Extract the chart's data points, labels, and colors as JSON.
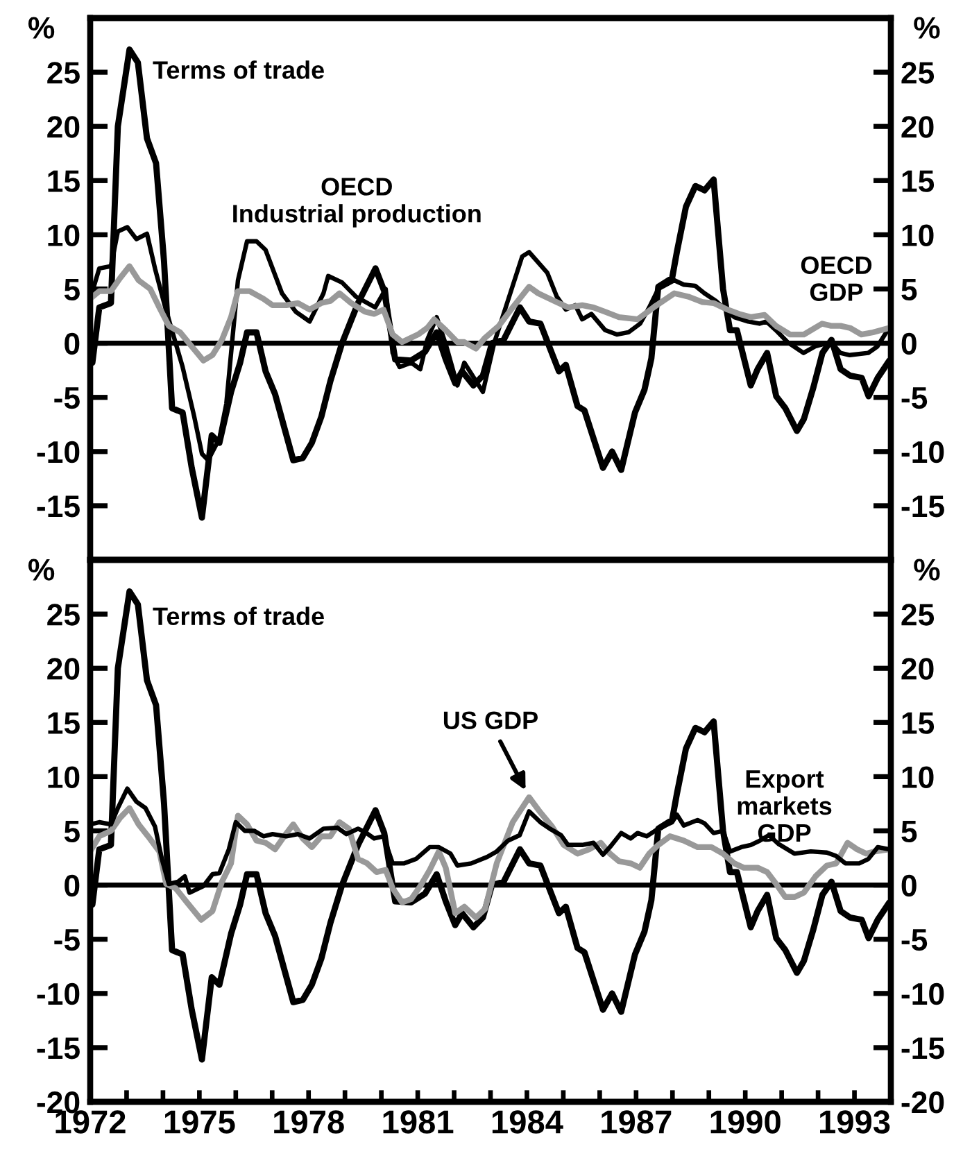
{
  "chart_data": [
    {
      "type": "line",
      "ylabel": "%",
      "y2label": "%",
      "xlim": [
        1972,
        1994
      ],
      "ylim": [
        -20,
        30
      ],
      "yticks": [
        -15,
        -10,
        -5,
        0,
        5,
        10,
        15,
        20,
        25
      ],
      "y2lim": [
        -20,
        30
      ],
      "y2ticks": [
        -15,
        -10,
        -5,
        0,
        5,
        10,
        15,
        20,
        25
      ],
      "tick_labels": "y",
      "ref_lines": [
        {
          "axis": "y",
          "value": 0,
          "color": "#000000"
        }
      ],
      "series": [
        {
          "name": "Terms of trade",
          "color": "#000000",
          "x": [
            1972.06,
            1972.25,
            1972.57,
            1972.76,
            1973.08,
            1973.31,
            1973.56,
            1973.81,
            1974.03,
            1974.25,
            1974.54,
            1974.79,
            1975.07,
            1975.34,
            1975.55,
            1975.87,
            1976.12,
            1976.31,
            1976.57,
            1976.82,
            1977.08,
            1977.58,
            1977.84,
            1978.09,
            1978.35,
            1978.6,
            1978.92,
            1979.36,
            1979.84,
            1980.08,
            1980.38,
            1980.82,
            1981.2,
            1981.52,
            1981.77,
            1982.03,
            1982.22,
            1982.53,
            1982.79,
            1983.04,
            1983.36,
            1983.81,
            1984.06,
            1984.37,
            1984.88,
            1985.07,
            1985.39,
            1985.58,
            1986.09,
            1986.34,
            1986.59,
            1986.97,
            1987.23,
            1987.42,
            1987.61,
            1987.99,
            1988.12,
            1988.37,
            1988.63,
            1988.88,
            1989.13,
            1989.39,
            1989.58,
            1989.77,
            1990.15,
            1990.34,
            1990.6,
            1990.85,
            1991.1,
            1991.42,
            1991.61,
            1991.87,
            1992.12,
            1992.37,
            1992.62,
            1992.88,
            1993.2,
            1993.39,
            1993.64,
            1993.96
          ],
          "values": [
            -1.8,
            3.3,
            3.7,
            20.0,
            27.1,
            25.9,
            18.9,
            16.6,
            7.5,
            -6.0,
            -6.4,
            -11.5,
            -16.1,
            -8.5,
            -9.2,
            -4.5,
            -1.8,
            1.0,
            1.0,
            -2.6,
            -4.7,
            -10.8,
            -10.6,
            -9.2,
            -6.8,
            -3.5,
            0.0,
            3.7,
            6.9,
            4.8,
            -1.5,
            -1.6,
            -0.8,
            1.0,
            -1.5,
            -3.7,
            -2.6,
            -3.9,
            -3.0,
            0.0,
            0.3,
            3.3,
            2.0,
            1.8,
            -2.6,
            -2.0,
            -5.8,
            -6.2,
            -11.5,
            -10.0,
            -11.7,
            -6.4,
            -4.3,
            -1.4,
            5.2,
            6.0,
            8.4,
            12.6,
            14.5,
            14.1,
            15.1,
            5.0,
            1.2,
            1.2,
            -3.9,
            -2.4,
            -0.9,
            -4.9,
            -6.0,
            -8.1,
            -7.0,
            -4.1,
            -0.9,
            0.3,
            -2.4,
            -3.0,
            -3.2,
            -4.9,
            -3.2,
            -1.6
          ]
        },
        {
          "name": "OECD\nIndustrial production",
          "color": "#000000",
          "x": [
            1972.0,
            1972.25,
            1972.57,
            1972.76,
            1973.02,
            1973.27,
            1973.56,
            1973.78,
            1974.03,
            1974.28,
            1974.54,
            1974.86,
            1975.07,
            1975.24,
            1975.55,
            1975.74,
            1976.06,
            1976.31,
            1976.57,
            1976.82,
            1977.27,
            1977.65,
            1978.03,
            1978.41,
            1978.54,
            1978.92,
            1979.3,
            1979.83,
            1980.12,
            1980.31,
            1980.5,
            1980.82,
            1981.07,
            1981.26,
            1981.52,
            1981.77,
            1982.09,
            1982.28,
            1982.79,
            1983.1,
            1983.87,
            1984.06,
            1984.56,
            1984.82,
            1985.07,
            1985.33,
            1985.52,
            1985.77,
            1986.15,
            1986.47,
            1986.79,
            1987.11,
            1987.36,
            1987.61,
            1988.05,
            1988.31,
            1988.62,
            1988.88,
            1989.19,
            1989.45,
            1989.7,
            1990.08,
            1990.39,
            1990.58,
            1990.84,
            1991.16,
            1991.6,
            1991.92,
            1992.36,
            1992.61,
            1992.87,
            1993.38,
            1993.63,
            1993.95
          ],
          "values": [
            4.1,
            6.9,
            7.1,
            10.3,
            10.7,
            9.6,
            10.1,
            6.9,
            3.7,
            0.8,
            -2.2,
            -6.8,
            -10.2,
            -10.8,
            -8.8,
            -5.6,
            5.8,
            9.4,
            9.4,
            8.6,
            4.6,
            2.9,
            2.0,
            4.6,
            6.2,
            5.6,
            4.3,
            3.3,
            5.0,
            -0.9,
            -2.2,
            -1.8,
            -2.4,
            0.3,
            2.4,
            -0.1,
            -3.9,
            -1.8,
            -4.5,
            0.0,
            8.0,
            8.4,
            6.5,
            4.3,
            3.1,
            3.5,
            2.2,
            2.7,
            1.2,
            0.8,
            1.0,
            1.8,
            3.3,
            5.0,
            5.8,
            5.4,
            5.3,
            4.6,
            3.9,
            3.1,
            2.4,
            2.0,
            1.8,
            2.0,
            1.2,
            0.1,
            -0.9,
            -0.3,
            0.1,
            -0.9,
            -1.1,
            -0.9,
            -0.3,
            1.4
          ]
        },
        {
          "name": "OECD\nGDP",
          "color": "#999999",
          "x": [
            1972.0,
            1972.25,
            1972.57,
            1972.82,
            1973.08,
            1973.33,
            1973.65,
            1973.9,
            1974.16,
            1974.47,
            1974.79,
            1975.11,
            1975.36,
            1975.62,
            1975.87,
            1976.06,
            1976.38,
            1976.76,
            1977.01,
            1977.39,
            1977.71,
            1978.03,
            1978.35,
            1978.6,
            1978.85,
            1979.17,
            1979.55,
            1979.8,
            1980.06,
            1980.31,
            1980.57,
            1981.01,
            1981.26,
            1981.45,
            1981.77,
            1982.09,
            1982.28,
            1982.6,
            1982.85,
            1983.23,
            1983.61,
            1984.06,
            1984.31,
            1984.75,
            1985.13,
            1985.52,
            1985.83,
            1986.15,
            1986.53,
            1987.04,
            1987.48,
            1988.05,
            1988.43,
            1988.81,
            1989.13,
            1989.51,
            1989.83,
            1990.15,
            1990.53,
            1990.84,
            1991.23,
            1991.61,
            1992.11,
            1992.36,
            1992.62,
            1992.88,
            1993.19,
            1993.51,
            1993.95
          ],
          "values": [
            4.1,
            4.8,
            4.8,
            6.0,
            7.1,
            5.8,
            5.0,
            3.3,
            1.6,
            1.0,
            -0.3,
            -1.6,
            -1.1,
            0.3,
            2.4,
            4.8,
            4.8,
            4.1,
            3.5,
            3.5,
            3.7,
            3.1,
            3.7,
            3.9,
            4.6,
            3.7,
            2.9,
            2.7,
            3.1,
            0.8,
            0.1,
            0.8,
            1.4,
            2.2,
            1.2,
            0.1,
            0.1,
            -0.5,
            0.5,
            1.6,
            3.3,
            5.2,
            4.6,
            3.9,
            3.3,
            3.5,
            3.3,
            2.9,
            2.4,
            2.2,
            3.3,
            4.6,
            4.3,
            3.8,
            3.7,
            3.1,
            2.7,
            2.4,
            2.6,
            1.6,
            0.8,
            0.8,
            1.8,
            1.6,
            1.6,
            1.4,
            0.8,
            1.0,
            1.4
          ]
        }
      ]
    },
    {
      "type": "line",
      "ylabel": "%",
      "y2label": "%",
      "xlim": [
        1972,
        1994
      ],
      "ylim": [
        -20,
        30
      ],
      "yticks": [
        -20,
        -15,
        -10,
        -5,
        0,
        5,
        10,
        15,
        20,
        25
      ],
      "y2lim": [
        -20,
        30
      ],
      "y2ticks": [
        -20,
        -15,
        -10,
        -5,
        0,
        5,
        10,
        15,
        20,
        25
      ],
      "xticks": [
        1972,
        {
          "value": 1973,
          "label": null
        },
        {
          "value": 1974,
          "label": null
        },
        1975,
        {
          "value": 1976,
          "label": null
        },
        {
          "value": 1977,
          "label": null
        },
        1978,
        {
          "value": 1979,
          "label": null
        },
        {
          "value": 1980,
          "label": null
        },
        1981,
        {
          "value": 1982,
          "label": null
        },
        {
          "value": 1983,
          "label": null
        },
        1984,
        {
          "value": 1985,
          "label": null
        },
        {
          "value": 1986,
          "label": null
        },
        1987,
        {
          "value": 1988,
          "label": null
        },
        {
          "value": 1989,
          "label": null
        },
        1990,
        {
          "value": 1991,
          "label": null
        },
        {
          "value": 1992,
          "label": null
        },
        1993
      ],
      "ref_lines": [
        {
          "axis": "y",
          "value": 0,
          "color": "#000000"
        }
      ],
      "series": [
        {
          "name": "Terms of trade",
          "color": "#000000",
          "x": [
            1972.06,
            1972.25,
            1972.57,
            1972.76,
            1973.08,
            1973.31,
            1973.56,
            1973.81,
            1974.03,
            1974.25,
            1974.54,
            1974.79,
            1975.07,
            1975.34,
            1975.55,
            1975.87,
            1976.12,
            1976.31,
            1976.57,
            1976.82,
            1977.08,
            1977.58,
            1977.84,
            1978.09,
            1978.35,
            1978.6,
            1978.92,
            1979.36,
            1979.84,
            1980.08,
            1980.38,
            1980.82,
            1981.2,
            1981.52,
            1981.77,
            1982.03,
            1982.22,
            1982.53,
            1982.79,
            1983.04,
            1983.36,
            1983.81,
            1984.06,
            1984.37,
            1984.88,
            1985.07,
            1985.39,
            1985.58,
            1986.09,
            1986.34,
            1986.59,
            1986.97,
            1987.23,
            1987.42,
            1987.61,
            1987.99,
            1988.12,
            1988.37,
            1988.63,
            1988.88,
            1989.13,
            1989.39,
            1989.58,
            1989.77,
            1990.15,
            1990.34,
            1990.6,
            1990.85,
            1991.1,
            1991.42,
            1991.61,
            1991.87,
            1992.12,
            1992.37,
            1992.62,
            1992.88,
            1993.2,
            1993.39,
            1993.64,
            1993.96
          ],
          "values": [
            -1.8,
            3.3,
            3.7,
            20.0,
            27.1,
            25.9,
            18.9,
            16.6,
            7.5,
            -6.0,
            -6.4,
            -11.5,
            -16.1,
            -8.5,
            -9.2,
            -4.5,
            -1.8,
            1.0,
            1.0,
            -2.6,
            -4.7,
            -10.8,
            -10.6,
            -9.2,
            -6.8,
            -3.5,
            0.0,
            3.7,
            6.9,
            4.8,
            -1.5,
            -1.6,
            -0.8,
            1.0,
            -1.5,
            -3.7,
            -2.6,
            -3.9,
            -3.0,
            0.0,
            0.3,
            3.3,
            2.0,
            1.8,
            -2.6,
            -2.0,
            -5.8,
            -6.2,
            -11.5,
            -10.0,
            -11.7,
            -6.4,
            -4.3,
            -1.4,
            5.2,
            6.0,
            8.4,
            12.6,
            14.5,
            14.1,
            15.1,
            5.0,
            1.2,
            1.2,
            -3.9,
            -2.4,
            -0.9,
            -4.9,
            -6.0,
            -8.1,
            -7.0,
            -4.1,
            -0.9,
            0.3,
            -2.4,
            -3.0,
            -3.2,
            -4.9,
            -3.2,
            -1.6
          ]
        },
        {
          "name": "US GDP",
          "color": "#999999",
          "x": [
            1972.0,
            1972.25,
            1972.57,
            1972.82,
            1973.08,
            1973.33,
            1973.59,
            1973.9,
            1974.09,
            1974.35,
            1974.66,
            1975.05,
            1975.36,
            1975.62,
            1975.87,
            1976.06,
            1976.31,
            1976.57,
            1976.82,
            1977.08,
            1977.33,
            1977.58,
            1977.84,
            1978.09,
            1978.35,
            1978.6,
            1978.85,
            1979.11,
            1979.36,
            1979.61,
            1979.87,
            1980.12,
            1980.31,
            1980.57,
            1980.82,
            1981.07,
            1981.33,
            1981.58,
            1981.77,
            1982.03,
            1982.28,
            1982.6,
            1982.85,
            1983.17,
            1983.61,
            1984.06,
            1984.37,
            1984.69,
            1985.01,
            1985.39,
            1985.71,
            1986.03,
            1986.28,
            1986.53,
            1986.85,
            1987.1,
            1987.36,
            1987.61,
            1987.93,
            1988.31,
            1988.69,
            1989.07,
            1989.39,
            1989.7,
            1989.96,
            1990.34,
            1990.6,
            1990.85,
            1991.1,
            1991.36,
            1991.61,
            1991.93,
            1992.24,
            1992.5,
            1992.81,
            1993.07,
            1993.32,
            1993.57,
            1993.96
          ],
          "values": [
            3.1,
            4.5,
            5.0,
            6.2,
            7.1,
            5.6,
            4.5,
            3.1,
            0.1,
            -0.3,
            -1.6,
            -3.2,
            -2.4,
            0.3,
            2.0,
            6.4,
            5.6,
            4.1,
            3.9,
            3.3,
            4.5,
            5.6,
            4.3,
            3.5,
            4.5,
            4.5,
            5.8,
            5.2,
            2.4,
            2.0,
            1.2,
            1.4,
            -0.3,
            -1.6,
            -1.3,
            -0.1,
            1.4,
            3.1,
            1.6,
            -2.6,
            -2.0,
            -3.0,
            -2.2,
            2.0,
            5.8,
            8.1,
            6.7,
            5.4,
            3.7,
            2.9,
            3.3,
            3.9,
            2.9,
            2.2,
            2.0,
            1.6,
            2.9,
            3.7,
            4.5,
            4.1,
            3.5,
            3.5,
            2.9,
            2.0,
            1.6,
            1.6,
            1.2,
            0.1,
            -1.1,
            -1.1,
            -0.7,
            0.8,
            1.8,
            2.0,
            3.9,
            3.3,
            2.9,
            3.1,
            3.3
          ]
        },
        {
          "name": "Export\nmarkets\nGDP",
          "color": "#000000",
          "x": [
            1972.0,
            1972.25,
            1972.57,
            1972.76,
            1973.02,
            1973.27,
            1973.52,
            1973.78,
            1973.97,
            1974.16,
            1974.41,
            1974.6,
            1974.73,
            1975.11,
            1975.36,
            1975.55,
            1975.81,
            1976.0,
            1976.25,
            1976.51,
            1976.76,
            1977.01,
            1977.39,
            1977.71,
            1978.03,
            1978.41,
            1978.79,
            1979.04,
            1979.36,
            1979.55,
            1979.8,
            1980.06,
            1980.31,
            1980.63,
            1980.95,
            1981.33,
            1981.58,
            1981.9,
            1982.09,
            1982.47,
            1982.91,
            1983.17,
            1983.48,
            1983.8,
            1984.06,
            1984.37,
            1984.63,
            1984.94,
            1985.13,
            1985.52,
            1985.83,
            1986.09,
            1986.28,
            1986.59,
            1986.85,
            1987.04,
            1987.29,
            1987.61,
            1987.99,
            1988.12,
            1988.31,
            1988.69,
            1988.88,
            1989.13,
            1989.39,
            1989.58,
            1989.89,
            1990.15,
            1990.4,
            1990.65,
            1990.91,
            1991.35,
            1991.8,
            1992.24,
            1992.49,
            1992.75,
            1993.13,
            1993.38,
            1993.64,
            1993.95
          ],
          "values": [
            5.6,
            5.8,
            5.6,
            7.1,
            8.9,
            7.7,
            7.1,
            5.4,
            2.4,
            0.1,
            0.3,
            0.8,
            -0.7,
            -0.1,
            1.0,
            1.1,
            3.3,
            5.8,
            5.0,
            5.0,
            4.5,
            4.7,
            4.5,
            4.7,
            4.3,
            5.2,
            5.3,
            4.7,
            5.2,
            4.9,
            4.3,
            4.5,
            2.0,
            2.0,
            2.4,
            3.5,
            3.5,
            2.9,
            1.8,
            2.0,
            2.6,
            3.1,
            4.1,
            4.6,
            6.8,
            5.8,
            5.2,
            4.6,
            3.7,
            3.7,
            3.9,
            2.8,
            3.5,
            4.8,
            4.3,
            4.8,
            4.5,
            5.2,
            5.8,
            6.5,
            5.5,
            6.0,
            5.7,
            4.8,
            5.0,
            3.1,
            3.5,
            3.7,
            4.1,
            4.6,
            3.8,
            2.9,
            3.1,
            3.0,
            2.7,
            2.0,
            2.0,
            2.4,
            3.5,
            3.3
          ]
        }
      ]
    }
  ]
}
